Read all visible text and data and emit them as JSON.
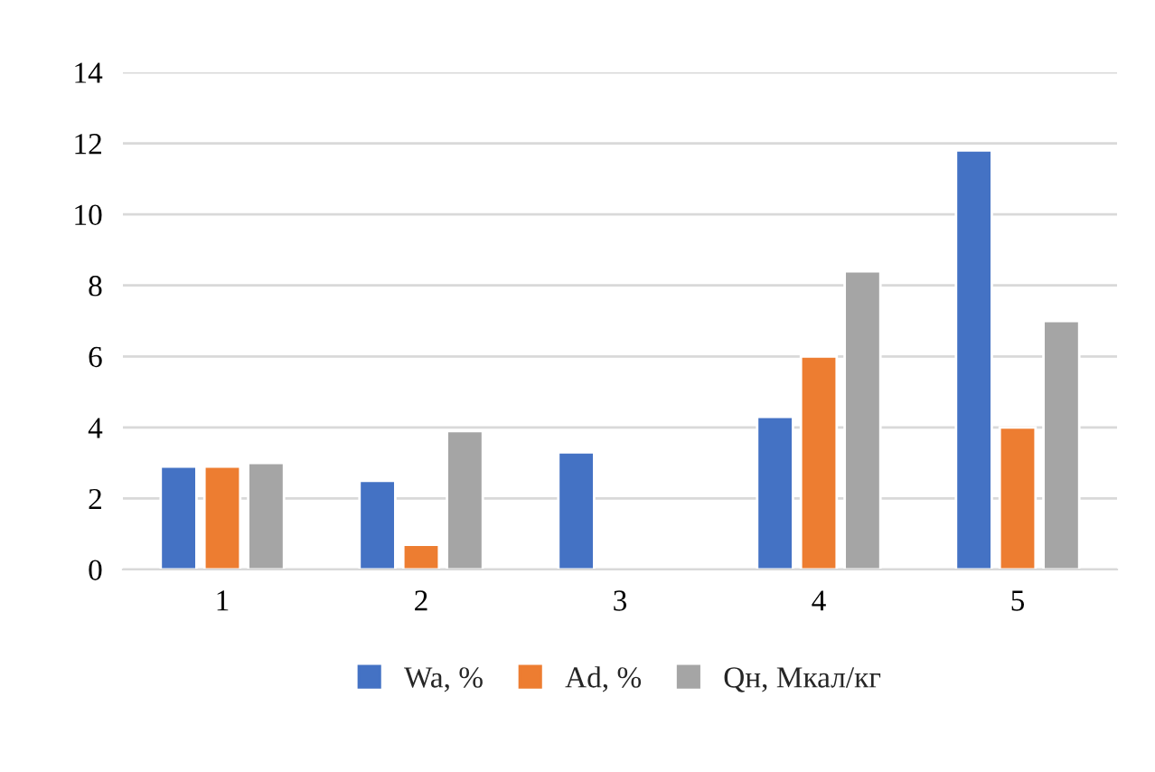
{
  "chart_data": {
    "type": "bar",
    "categories": [
      "1",
      "2",
      "3",
      "4",
      "5"
    ],
    "series": [
      {
        "name": "Wa, %",
        "color": "#4472c4",
        "values": [
          2.9,
          2.5,
          3.3,
          4.3,
          11.8
        ]
      },
      {
        "name": "Ad, %",
        "color": "#ed7d31",
        "values": [
          2.9,
          0.7,
          null,
          6.0,
          4.0
        ]
      },
      {
        "name": "Qн, Мкал/кг",
        "color": "#a5a5a5",
        "values": [
          3.0,
          3.9,
          null,
          8.4,
          7.0
        ]
      }
    ],
    "ylim": [
      0,
      14
    ],
    "yticks": [
      0,
      2,
      4,
      6,
      8,
      10,
      12,
      14
    ],
    "grid": "y",
    "legend": "bottom"
  }
}
